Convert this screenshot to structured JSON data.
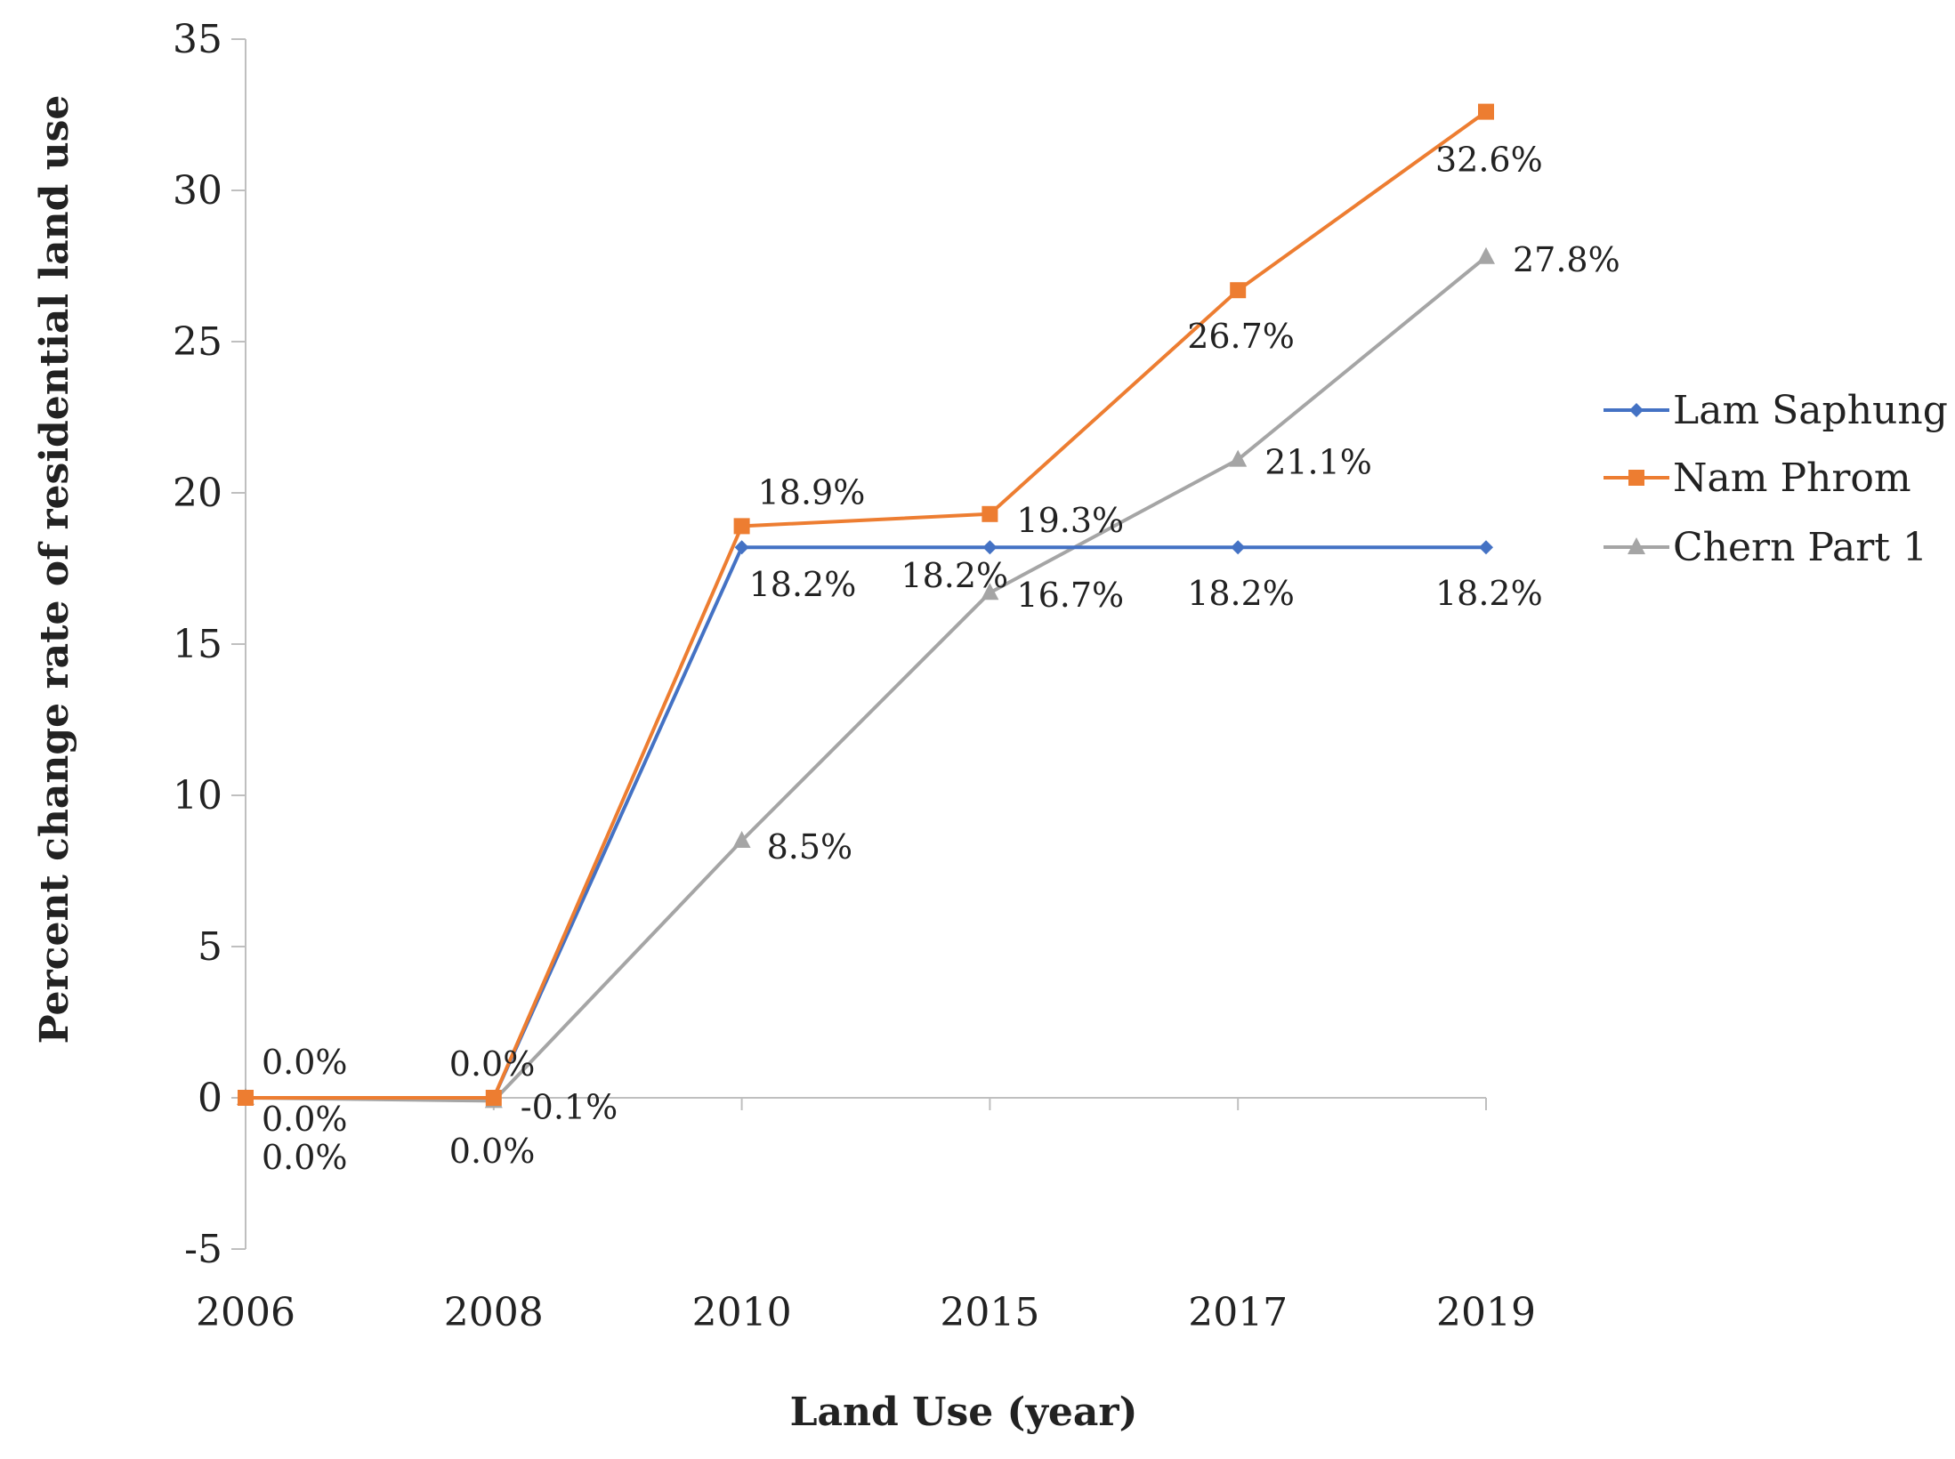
{
  "chart_data": {
    "type": "line",
    "title": "",
    "xlabel": "Land Use (year)",
    "ylabel": "Percent change rate of residential land use",
    "categories": [
      "2006",
      "2008",
      "2010",
      "2015",
      "2017",
      "2019"
    ],
    "ylim": [
      -5,
      35
    ],
    "yticks": [
      -5,
      0,
      5,
      10,
      15,
      20,
      25,
      30,
      35
    ],
    "ytick_labels": [
      "-5",
      "0",
      "5",
      "10",
      "15",
      "20",
      "25",
      "30",
      "35"
    ],
    "grid": false,
    "legend_position": "right",
    "series": [
      {
        "name": "Lam Saphung",
        "color": "#4472C4",
        "marker": "diamond",
        "values": [
          0.0,
          0.0,
          18.2,
          18.2,
          18.2,
          18.2
        ],
        "labels": [
          "0.0%",
          "0.0%",
          "18.2%",
          "18.2%",
          "18.2%",
          "18.2%"
        ]
      },
      {
        "name": "Nam Phrom",
        "color": "#ED7D31",
        "marker": "square",
        "values": [
          0.0,
          0.0,
          18.9,
          19.3,
          26.7,
          32.6
        ],
        "labels": [
          "0.0%",
          "0.0%",
          "18.9%",
          "19.3%",
          "26.7%",
          "32.6%"
        ]
      },
      {
        "name": "Chern Part 1",
        "color": "#A5A5A5",
        "marker": "triangle",
        "values": [
          0.0,
          -0.1,
          8.5,
          16.7,
          21.1,
          27.8
        ],
        "labels": [
          "0.0%",
          "-0.1%",
          "8.5%",
          "16.7%",
          "21.1%",
          "27.8%"
        ]
      }
    ]
  }
}
